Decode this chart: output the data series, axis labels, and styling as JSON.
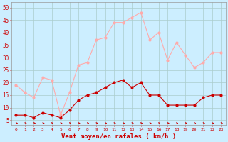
{
  "x": [
    0,
    1,
    2,
    3,
    4,
    5,
    6,
    7,
    8,
    9,
    10,
    11,
    12,
    13,
    14,
    15,
    16,
    17,
    18,
    19,
    20,
    21,
    22,
    23
  ],
  "rafales": [
    19,
    16,
    14,
    22,
    21,
    7,
    16,
    27,
    28,
    37,
    38,
    44,
    44,
    46,
    48,
    37,
    40,
    29,
    36,
    31,
    26,
    28,
    32,
    32
  ],
  "moyen": [
    7,
    7,
    6,
    8,
    7,
    6,
    9,
    13,
    15,
    16,
    18,
    20,
    21,
    18,
    20,
    15,
    15,
    11,
    11,
    11,
    11,
    14,
    15,
    15
  ],
  "xlabel": "Vent moyen/en rafales ( km/h )",
  "ylim_min": 3,
  "ylim_max": 52,
  "yticks": [
    5,
    10,
    15,
    20,
    25,
    30,
    35,
    40,
    45,
    50
  ],
  "bg_color": "#cceeff",
  "grid_color": "#aacccc",
  "line_color_rafales": "#ffaaaa",
  "line_color_moyen": "#cc0000",
  "arrow_color": "#cc0000",
  "xlabel_color": "#cc0000",
  "tick_color": "#cc0000",
  "marker_size": 2,
  "line_width": 0.8
}
